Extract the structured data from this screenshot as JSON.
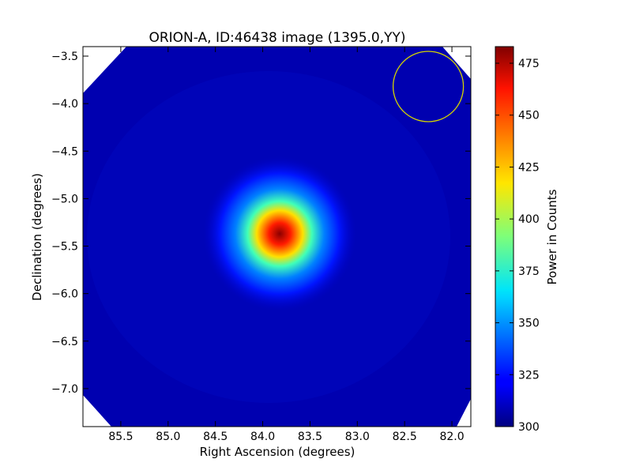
{
  "chart_data": {
    "type": "heatmap",
    "title": "ORION-A, ID:46438 image (1395.0,YY)",
    "xlabel": "Right Ascension (degrees)",
    "ylabel": "Declination (degrees)",
    "xlim": [
      85.9,
      81.8
    ],
    "ylim": [
      -7.4,
      -3.4
    ],
    "x_ticks": [
      85.5,
      85.0,
      84.5,
      84.0,
      83.5,
      83.0,
      82.5,
      82.0
    ],
    "x_tick_labels": [
      "85.5",
      "85.0",
      "84.5",
      "84.0",
      "83.5",
      "83.0",
      "82.5",
      "82.0"
    ],
    "y_ticks": [
      -3.5,
      -4.0,
      -4.5,
      -5.0,
      -5.5,
      -6.0,
      -6.5,
      -7.0
    ],
    "y_tick_labels": [
      "−3.5",
      "−4.0",
      "−4.5",
      "−5.0",
      "−5.5",
      "−6.0",
      "−6.5",
      "−7.0"
    ],
    "colormap": "jet",
    "colorbar": {
      "label": "Power in Counts",
      "range": [
        300,
        483
      ],
      "ticks": [
        300,
        325,
        350,
        375,
        400,
        425,
        450,
        475
      ],
      "tick_labels": [
        "300",
        "325",
        "350",
        "375",
        "400",
        "425",
        "450",
        "475"
      ]
    },
    "source": {
      "ra": 83.82,
      "dec": -5.37,
      "peak": 483,
      "background": 305
    },
    "beam_circle": {
      "ra": 82.25,
      "dec": -3.82,
      "radius_deg": 0.37,
      "color": "#d4d400"
    },
    "grid": false
  }
}
